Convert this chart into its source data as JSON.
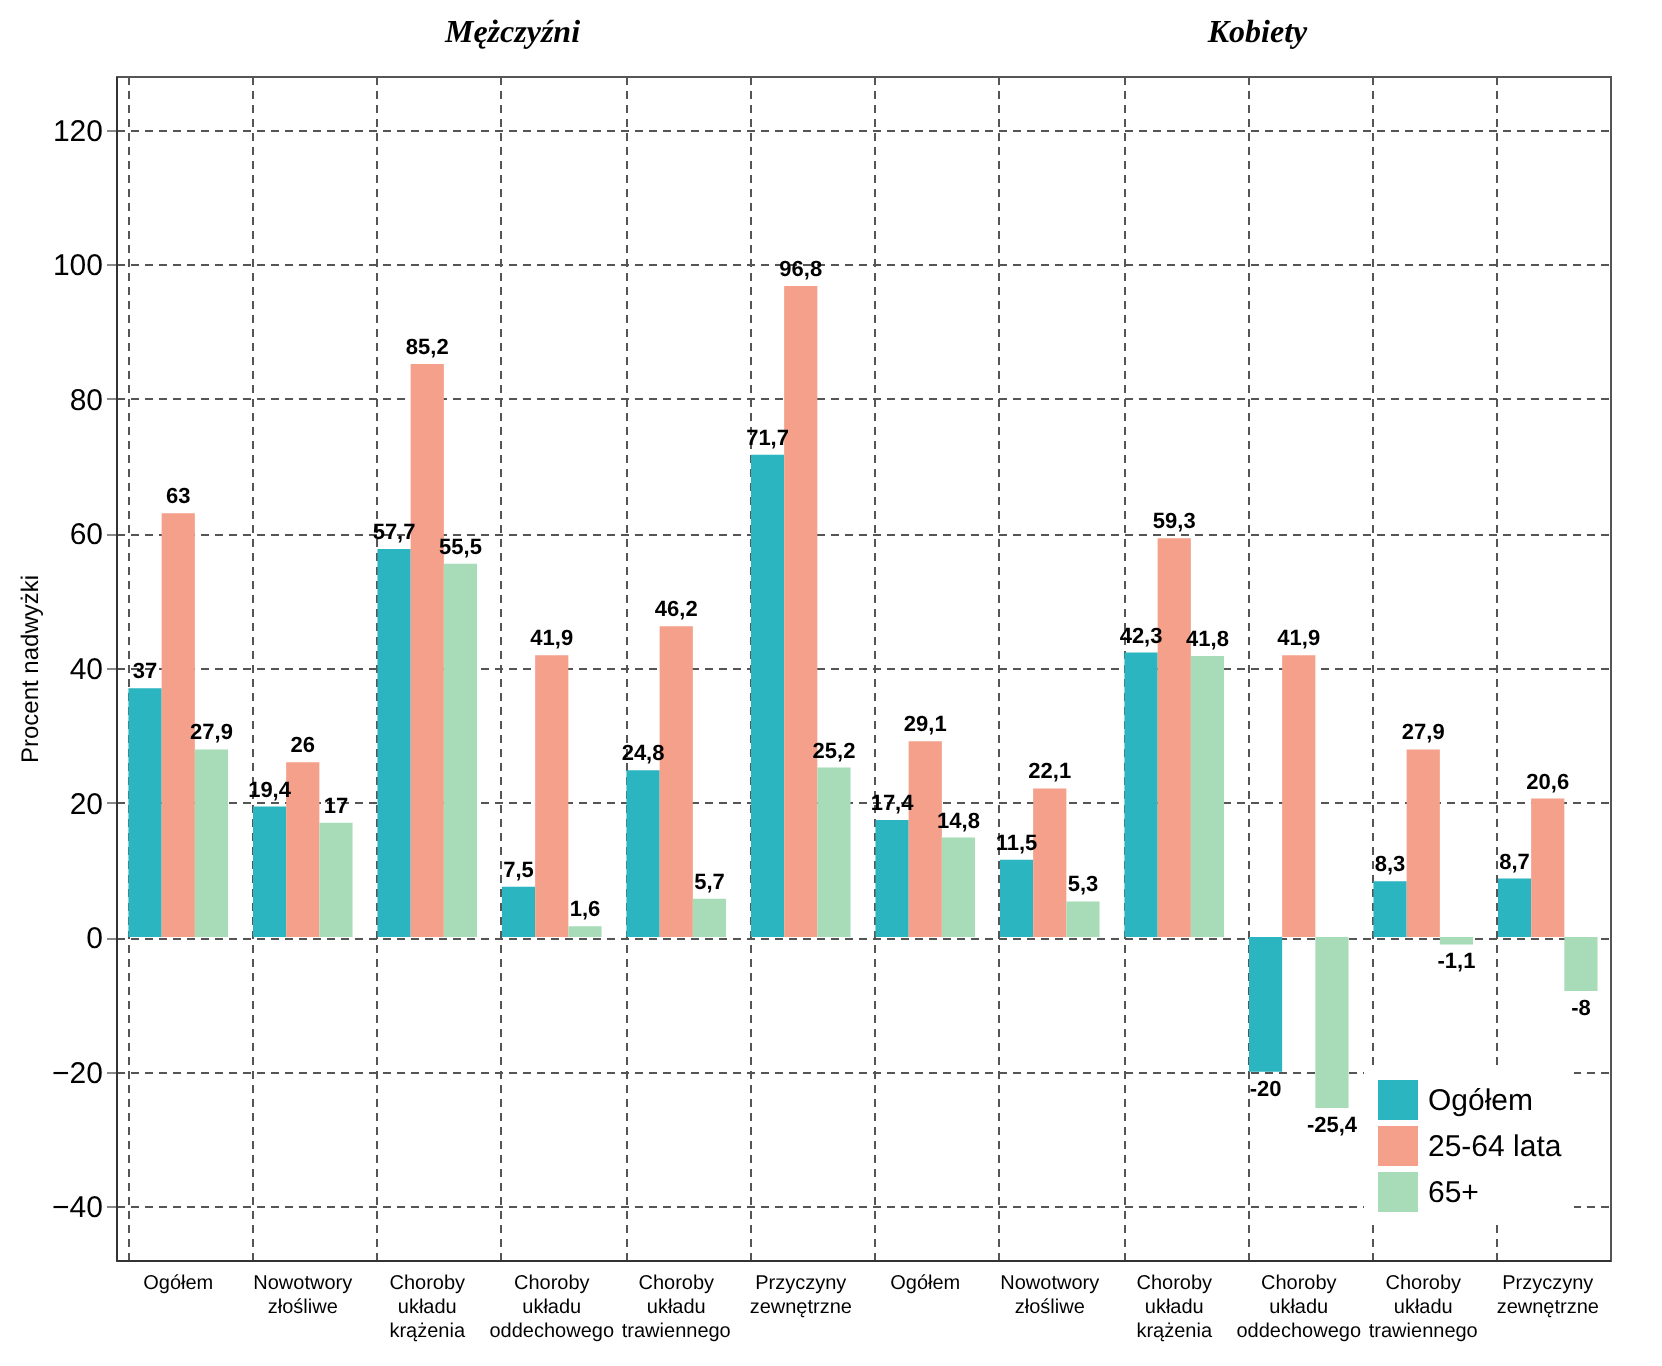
{
  "chart_data": {
    "type": "bar",
    "ylabel": "Procent nadwyżki",
    "annotations": [
      "Mężczyźni",
      "Kobiety"
    ],
    "categories": [
      "Ogółem",
      "Nowotwory złośliwe",
      "Choroby układu krążenia",
      "Choroby układu oddechowego",
      "Choroby układu trawiennego",
      "Przyczyny zewnętrzne",
      "Ogółem",
      "Nowotwory złośliwe",
      "Choroby układu krążenia",
      "Choroby układu oddechowego",
      "Choroby układu trawiennego",
      "Przyczyny zewnętrzne"
    ],
    "series": [
      {
        "name": "Ogółem",
        "color": "#2bb5c0",
        "values": [
          37,
          19.4,
          57.7,
          7.5,
          24.8,
          71.7,
          17.4,
          11.5,
          42.3,
          -20,
          8.3,
          8.7
        ],
        "value_labels": [
          "37",
          "19,4",
          "57,7",
          "7,5",
          "24,8",
          "71,7",
          "17,4",
          "11,5",
          "42,3",
          "-20",
          "8,3",
          "8,7"
        ]
      },
      {
        "name": "25-64 lata",
        "color": "#f4a08a",
        "values": [
          63,
          26,
          85.2,
          41.9,
          46.2,
          96.8,
          29.1,
          22.1,
          59.3,
          41.9,
          27.9,
          20.6
        ],
        "value_labels": [
          "63",
          "26",
          "85,2",
          "41,9",
          "46,2",
          "96,8",
          "29,1",
          "22,1",
          "59,3",
          "41,9",
          "27,9",
          "20,6"
        ]
      },
      {
        "name": "65+",
        "color": "#a8dcb8",
        "values": [
          27.9,
          17,
          55.5,
          1.6,
          5.7,
          25.2,
          14.8,
          5.3,
          41.8,
          -25.4,
          -1.1,
          -8
        ],
        "value_labels": [
          "27,9",
          "17",
          "55,5",
          "1,6",
          "5,7",
          "25,2",
          "14,8",
          "5,3",
          "41,8",
          "-25,4",
          "-1,1",
          "-8"
        ]
      }
    ],
    "ylim": [
      -48,
      128
    ],
    "yticks": [
      -40,
      -20,
      0,
      20,
      40,
      60,
      80,
      100,
      120
    ],
    "grid": true,
    "legend": "bottom right"
  }
}
